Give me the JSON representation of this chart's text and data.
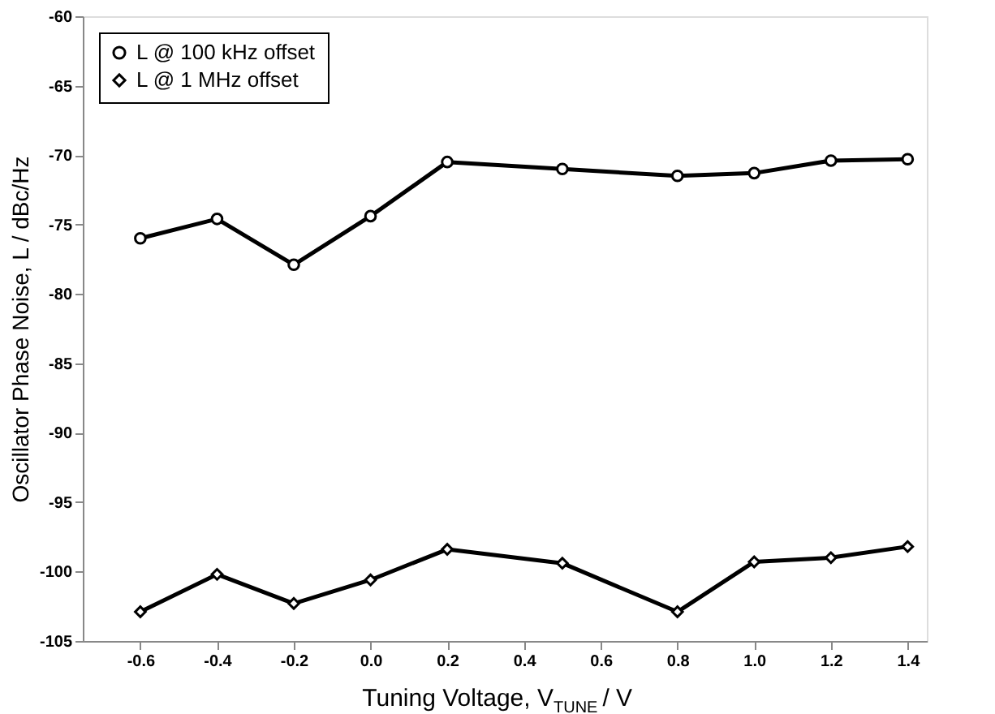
{
  "chart_data": {
    "type": "line",
    "xlabel": "Tuning Voltage, V$_{TUNE}$ / V",
    "ylabel": "Oscillator Phase Noise,  L / dBc/Hz",
    "x": [
      -0.6,
      -0.4,
      -0.2,
      0.0,
      0.2,
      0.5,
      0.8,
      1.0,
      1.2,
      1.4
    ],
    "series": [
      {
        "name": "L @ 100 kHz offset",
        "color": "#000000",
        "marker": "circle",
        "values": [
          -76,
          -74.6,
          -77.9,
          -74.4,
          -70.5,
          -71,
          -71.5,
          -71.3,
          -70.4,
          -70.3
        ]
      },
      {
        "name": "L @    1 MHz offset",
        "color": "#000000",
        "marker": "diamond",
        "values": [
          -102.9,
          -100.2,
          -102.3,
          -100.6,
          -98.4,
          -99.4,
          -102.9,
          -99.3,
          -99,
          -98.2
        ]
      }
    ],
    "xlim": [
      -0.75,
      1.45
    ],
    "xticks": [
      -0.6,
      -0.4,
      -0.2,
      {
        "value": 0,
        "label": "0.0"
      },
      0.2,
      0.4,
      0.6,
      0.8,
      {
        "value": 1,
        "label": "1.0"
      },
      1.2,
      1.4
    ],
    "ylim": [
      -105,
      -60
    ],
    "yticks": [
      -105,
      -100,
      -95,
      -90,
      -85,
      -80,
      -75,
      -70,
      -65,
      -60
    ],
    "grid": false,
    "legend": "top left",
    "line_style": "solid"
  }
}
